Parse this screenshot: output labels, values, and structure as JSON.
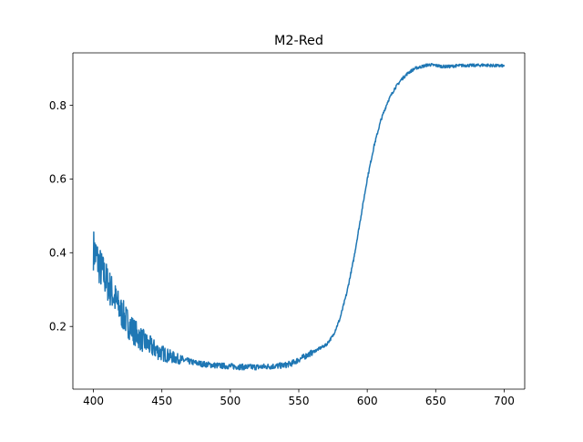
{
  "chart_data": {
    "type": "line",
    "title": "M2-Red",
    "xlabel": "",
    "ylabel": "",
    "xlim": [
      385,
      715
    ],
    "ylim": [
      0.03,
      0.942
    ],
    "x_ticks": [
      400,
      450,
      500,
      550,
      600,
      650,
      700
    ],
    "x_tick_labels": [
      "400",
      "450",
      "500",
      "550",
      "600",
      "650",
      "700"
    ],
    "y_ticks": [
      0.2,
      0.4,
      0.6,
      0.8
    ],
    "y_tick_labels": [
      "0.2",
      "0.4",
      "0.6",
      "0.8"
    ],
    "grid": false,
    "legend": "none",
    "series": [
      {
        "color": "#1f77b4",
        "x": [
          400,
          405,
          410,
          415,
          420,
          425,
          430,
          435,
          440,
          445,
          450,
          455,
          460,
          465,
          470,
          475,
          480,
          485,
          490,
          495,
          500,
          505,
          510,
          515,
          520,
          525,
          530,
          535,
          540,
          545,
          550,
          555,
          560,
          565,
          570,
          575,
          580,
          585,
          590,
          595,
          600,
          605,
          610,
          615,
          620,
          625,
          630,
          635,
          640,
          645,
          650,
          655,
          660,
          665,
          670,
          675,
          680,
          685,
          690,
          695,
          700
        ],
        "values": [
          0.41,
          0.36,
          0.32,
          0.28,
          0.24,
          0.21,
          0.185,
          0.165,
          0.15,
          0.138,
          0.128,
          0.12,
          0.114,
          0.109,
          0.105,
          0.101,
          0.098,
          0.096,
          0.094,
          0.093,
          0.092,
          0.091,
          0.09,
          0.09,
          0.09,
          0.091,
          0.092,
          0.093,
          0.095,
          0.1,
          0.11,
          0.12,
          0.13,
          0.14,
          0.15,
          0.175,
          0.22,
          0.29,
          0.38,
          0.49,
          0.6,
          0.69,
          0.76,
          0.81,
          0.845,
          0.87,
          0.888,
          0.9,
          0.905,
          0.91,
          0.908,
          0.905,
          0.905,
          0.907,
          0.908,
          0.908,
          0.908,
          0.909,
          0.908,
          0.907,
          0.907
        ]
      }
    ]
  }
}
